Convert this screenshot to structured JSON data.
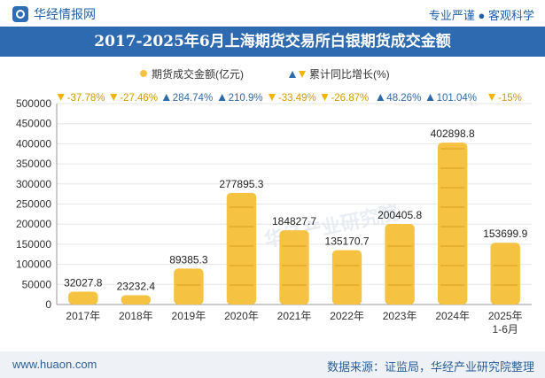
{
  "header": {
    "brand_name": "华经情报网",
    "slogan": "专业严谨 ● 客观科学"
  },
  "title": "2017-2025年6月上海期货交易所白银期货成交金额",
  "legend": {
    "bar_label": "期货成交金额(亿元)",
    "growth_label": "累计同比增长(%)"
  },
  "watermark": "华经产业研究院",
  "footer": {
    "url": "www.huaon.com",
    "source": "数据来源：证监局，华经产业研究院整理"
  },
  "colors": {
    "bar": "#f5c242",
    "up": "#2f6aa8",
    "down": "#f2b400",
    "header": "#2e6ab0"
  },
  "chart_data": {
    "type": "bar",
    "categories": [
      "2017年",
      "2018年",
      "2019年",
      "2020年",
      "2021年",
      "2022年",
      "2023年",
      "2024年",
      "2025年\n1-6月"
    ],
    "series": [
      {
        "name": "期货成交金额(亿元)",
        "values": [
          32027.8,
          23232.4,
          89385.3,
          277895.3,
          184827.7,
          135170.7,
          200405.8,
          402898.8,
          153699.9
        ]
      },
      {
        "name": "累计同比增长(%)",
        "values": [
          -37.78,
          -27.46,
          284.74,
          210.9,
          -33.49,
          -26.87,
          48.26,
          101.04,
          -15
        ]
      }
    ],
    "value_labels": [
      "32027.8",
      "23232.4",
      "89385.3",
      "277895.3",
      "184827.7",
      "135170.7",
      "200405.8",
      "402898.8",
      "153699.9"
    ],
    "growth_labels": [
      "-37.78%",
      "-27.46%",
      "284.74%",
      "210.9%",
      "-33.49%",
      "-26.87%",
      "48.26%",
      "101.04%",
      "-15%"
    ],
    "ylim": [
      0,
      500000
    ],
    "yticks": [
      0,
      50000,
      100000,
      150000,
      200000,
      250000,
      300000,
      350000,
      400000,
      450000,
      500000
    ],
    "legend_position": "top-center"
  }
}
